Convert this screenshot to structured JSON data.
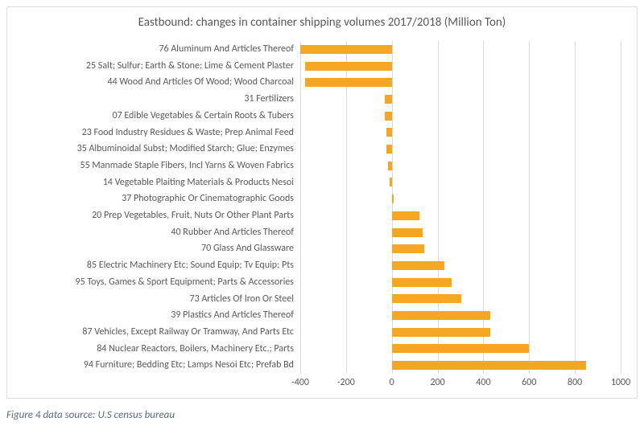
{
  "chart": {
    "type": "bar",
    "orientation": "horizontal",
    "title": "Eastbound: changes in container shipping volumes 2017/2018 (Million Ton)",
    "title_fontsize": 15,
    "title_color": "#595959",
    "bar_color": "#f5a623",
    "background_color": "#ffffff",
    "grid_color": "#d9d9d9",
    "border_color": "#dcdcdc",
    "label_color": "#595959",
    "label_fontsize": 12,
    "xaxis": {
      "min": -400,
      "max": 1000,
      "tick_step": 200,
      "ticks": [
        -400,
        -200,
        0,
        200,
        400,
        600,
        800,
        1000
      ],
      "tick_fontsize": 12,
      "tick_color": "#595959"
    },
    "categories": [
      {
        "label": "76 Aluminum And Articles Thereof",
        "value": -400
      },
      {
        "label": "25 Salt; Sulfur; Earth & Stone; Lime & Cement Plaster",
        "value": -380
      },
      {
        "label": "44 Wood And Articles Of Wood; Wood Charcoal",
        "value": -380
      },
      {
        "label": "31 Fertilizers",
        "value": -30
      },
      {
        "label": "07 Edible Vegetables & Certain Roots & Tubers",
        "value": -30
      },
      {
        "label": "23 Food Industry Residues & Waste; Prep Animal Feed",
        "value": -25
      },
      {
        "label": "35 Albuminoidal Subst; Modified Starch; Glue; Enzymes",
        "value": -25
      },
      {
        "label": "55 Manmade Staple Fibers, Incl Yarns & Woven Fabrics",
        "value": -15
      },
      {
        "label": "14 Vegetable Plaiting Materials & Products Nesoi",
        "value": -10
      },
      {
        "label": "37 Photographic Or Cinematographic Goods",
        "value": 8
      },
      {
        "label": "20 Prep Vegetables, Fruit, Nuts Or Other Plant Parts",
        "value": 120
      },
      {
        "label": "40 Rubber And Articles Thereof",
        "value": 135
      },
      {
        "label": "70 Glass And Glassware",
        "value": 140
      },
      {
        "label": "85 Electric Machinery Etc; Sound Equip; Tv Equip; Pts",
        "value": 230
      },
      {
        "label": "95 Toys, Games & Sport Equipment; Parts & Accessories",
        "value": 260
      },
      {
        "label": "73 Articles Of Iron Or Steel",
        "value": 305
      },
      {
        "label": "39 Plastics And Articles Thereof",
        "value": 430
      },
      {
        "label": "87 Vehicles, Except Railway Or Tramway, And Parts Etc",
        "value": 430
      },
      {
        "label": "84 Nuclear Reactors, Boilers, Machinery Etc.; Parts",
        "value": 600
      },
      {
        "label": "94 Furniture; Bedding Etc; Lamps Nesoi Etc; Prefab Bd",
        "value": 850
      }
    ]
  },
  "caption": {
    "text": "Figure 4 data source: U.S census bureau",
    "fontsize": 13,
    "color": "#5b6b84"
  }
}
